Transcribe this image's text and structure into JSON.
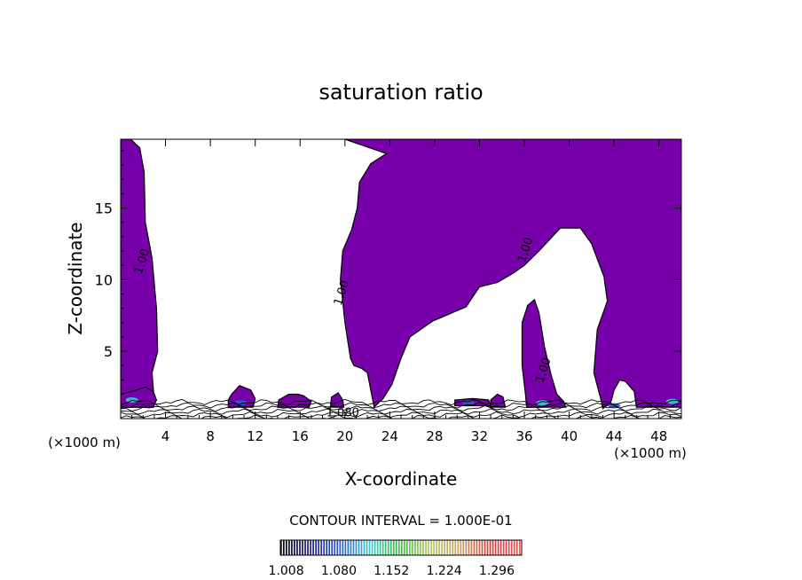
{
  "chart_data": {
    "type": "heatmap",
    "title": "saturation ratio",
    "xlabel": "X-coordinate",
    "ylabel": "Z-coordinate",
    "x_unit_left": "(×1000 m)",
    "x_unit_right": "(×1000 m)",
    "xlim": [
      0,
      50
    ],
    "ylim": [
      0.3,
      19.8
    ],
    "xticks": [
      4,
      8,
      12,
      16,
      20,
      24,
      28,
      32,
      36,
      40,
      44,
      48
    ],
    "yticks": [
      5,
      10,
      15
    ],
    "contour_interval_text": "CONTOUR INTERVAL = 1.000E-01",
    "contour_labels": [
      {
        "text": "1.00",
        "x": 2.2,
        "z": 11.2
      },
      {
        "text": "1.00",
        "x": 20.0,
        "z": 9.0
      },
      {
        "text": "1.00",
        "x": 36.4,
        "z": 12.0
      },
      {
        "text": "1.00",
        "x": 38.0,
        "z": 3.6
      },
      {
        "text": "1.080",
        "x": 19.8,
        "z": 0.45
      }
    ],
    "colorbar": {
      "min": 1.0,
      "max": 1.33,
      "tick_labels": [
        "1.008",
        "1.080",
        "1.152",
        "1.224",
        "1.296"
      ],
      "colors": [
        "#000000",
        "#1a1a8c",
        "#2a5acc",
        "#38c8c8",
        "#3cc040",
        "#b8c860",
        "#c8a060",
        "#c84040",
        "#ff5050"
      ]
    },
    "fill_color": "#7700aa",
    "regions": [
      {
        "name": "left-column",
        "polygon": [
          [
            0,
            19.8
          ],
          [
            0,
            1.1
          ],
          [
            2.9,
            1.1
          ],
          [
            3,
            1.5
          ],
          [
            2.8,
            3.5
          ],
          [
            3.3,
            5
          ],
          [
            3.2,
            8
          ],
          [
            2.8,
            11.5
          ],
          [
            2.2,
            14
          ],
          [
            2.1,
            17.5
          ],
          [
            1.7,
            19.2
          ],
          [
            0.9,
            19.8
          ]
        ]
      },
      {
        "name": "main-cloud",
        "polygon": [
          [
            20,
            19.8
          ],
          [
            50,
            19.8
          ],
          [
            50,
            1.1
          ],
          [
            46,
            1.1
          ],
          [
            45.8,
            2.2
          ],
          [
            45,
            2.9
          ],
          [
            44.5,
            3
          ],
          [
            44,
            2.3
          ],
          [
            43.7,
            1.4
          ],
          [
            43,
            1
          ],
          [
            42.8,
            1.7
          ],
          [
            42.2,
            3.5
          ],
          [
            42.5,
            6.5
          ],
          [
            43.4,
            8.5
          ],
          [
            43.1,
            10.2
          ],
          [
            42,
            12.5
          ],
          [
            41,
            13.6
          ],
          [
            39.2,
            13.6
          ],
          [
            37.3,
            12
          ],
          [
            36,
            11
          ],
          [
            35.1,
            10.5
          ],
          [
            33.6,
            9.8
          ],
          [
            32,
            9.5
          ],
          [
            30.8,
            8.1
          ],
          [
            27.8,
            7.1
          ],
          [
            25.8,
            6
          ],
          [
            25,
            4.5
          ],
          [
            24.2,
            2.7
          ],
          [
            23.4,
            1.7
          ],
          [
            22.6,
            1.1
          ],
          [
            22,
            3.5
          ],
          [
            21.5,
            3.8
          ],
          [
            20.8,
            4
          ],
          [
            20.5,
            4.5
          ],
          [
            20,
            7
          ],
          [
            19.6,
            10
          ],
          [
            19.8,
            12
          ],
          [
            20.6,
            13.5
          ],
          [
            21.1,
            15
          ],
          [
            21.3,
            16.8
          ],
          [
            22.3,
            18.1
          ],
          [
            23.7,
            18.8
          ]
        ]
      },
      {
        "name": "pillar-36",
        "polygon": [
          [
            36.2,
            1.1
          ],
          [
            39.7,
            1.1
          ],
          [
            39.5,
            1.5
          ],
          [
            38.9,
            2
          ],
          [
            38.4,
            3.3
          ],
          [
            37.8,
            5.3
          ],
          [
            37.3,
            7.7
          ],
          [
            36.9,
            8.6
          ],
          [
            36.3,
            8.2
          ],
          [
            35.8,
            7
          ],
          [
            35.8,
            4
          ],
          [
            36.1,
            2
          ]
        ]
      },
      {
        "name": "patch-left-edge",
        "polygon": [
          [
            0,
            1.1
          ],
          [
            2.9,
            1.1
          ],
          [
            3.2,
            1.6
          ],
          [
            2.9,
            2.2
          ],
          [
            2.2,
            2.5
          ],
          [
            1,
            2.2
          ],
          [
            0,
            2
          ]
        ]
      },
      {
        "name": "bump-11",
        "polygon": [
          [
            9.6,
            1.1
          ],
          [
            11.8,
            1.1
          ],
          [
            12,
            1.7
          ],
          [
            11.6,
            2.3
          ],
          [
            10.6,
            2.6
          ],
          [
            9.9,
            2
          ],
          [
            9.6,
            1.6
          ]
        ]
      },
      {
        "name": "bump-15",
        "polygon": [
          [
            14,
            1.1
          ],
          [
            16.8,
            1.1
          ],
          [
            17,
            1.5
          ],
          [
            16.3,
            1.9
          ],
          [
            15.8,
            2
          ],
          [
            15,
            2
          ],
          [
            14.1,
            1.6
          ]
        ]
      },
      {
        "name": "bump-19",
        "polygon": [
          [
            18.7,
            1.1
          ],
          [
            19.9,
            1.1
          ],
          [
            19.8,
            1.6
          ],
          [
            19.4,
            2.1
          ],
          [
            18.8,
            1.8
          ]
        ]
      },
      {
        "name": "bump-30",
        "polygon": [
          [
            29.8,
            1.2
          ],
          [
            33,
            1.2
          ],
          [
            32.8,
            1.6
          ],
          [
            31.4,
            1.7
          ],
          [
            29.8,
            1.6
          ]
        ]
      },
      {
        "name": "bump-33",
        "polygon": [
          [
            33,
            1.1
          ],
          [
            34.3,
            1.1
          ],
          [
            34.1,
            1.8
          ],
          [
            33.6,
            2
          ],
          [
            33,
            1.6
          ]
        ]
      }
    ],
    "hot_spots": [
      {
        "x": 1.0,
        "z": 1.6,
        "color": "#38c8c8"
      },
      {
        "x": 37.6,
        "z": 1.4,
        "color": "#38c8c8"
      },
      {
        "x": 49.2,
        "z": 1.5,
        "color": "#38c8c8"
      },
      {
        "x": 10.7,
        "z": 1.4,
        "color": "#2a5acc"
      },
      {
        "x": 31.0,
        "z": 1.4,
        "color": "#2a5acc"
      },
      {
        "x": 44.0,
        "z": 1.2,
        "color": "#2a5acc"
      }
    ]
  }
}
